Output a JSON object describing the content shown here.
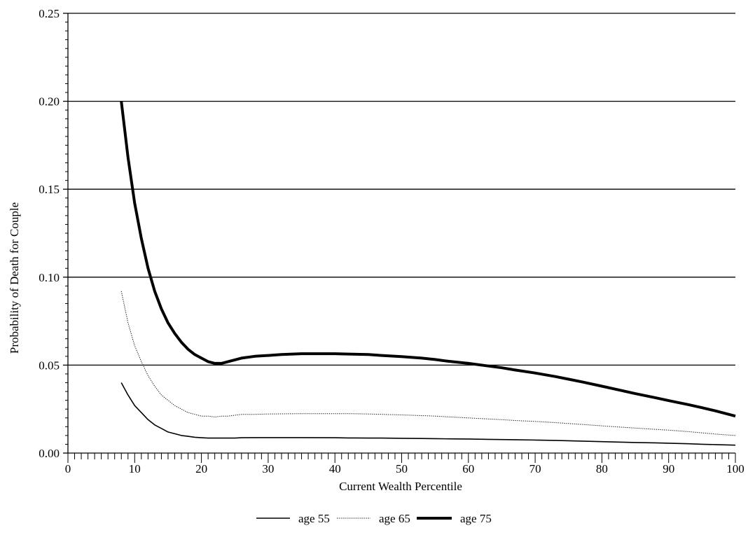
{
  "chart_data": {
    "type": "line",
    "title": "",
    "xlabel": "Current Wealth Percentile",
    "ylabel": "Probability of Death for Couple",
    "xlim": [
      0,
      100
    ],
    "ylim": [
      0,
      0.25
    ],
    "x_ticks": [
      "0",
      "10",
      "20",
      "30",
      "40",
      "50",
      "60",
      "70",
      "80",
      "90",
      "100"
    ],
    "y_ticks": [
      "0.00",
      "0.05",
      "0.10",
      "0.15",
      "0.20",
      "0.25"
    ],
    "grid": "horizontal major lines at 0.05 intervals",
    "legend_position": "bottom-center",
    "x": [
      8,
      9,
      10,
      11,
      12,
      13,
      14,
      15,
      16,
      17,
      18,
      19,
      20,
      21,
      22,
      23,
      24,
      25,
      26,
      28,
      30,
      32,
      35,
      40,
      42,
      45,
      47,
      50,
      53,
      55,
      57,
      60,
      63,
      65,
      67,
      70,
      73,
      75,
      77,
      80,
      83,
      85,
      88,
      90,
      93,
      95,
      97,
      100
    ],
    "series": [
      {
        "name": "age 55",
        "style": "thin-solid",
        "values": [
          0.04,
          0.033,
          0.027,
          0.023,
          0.019,
          0.016,
          0.014,
          0.012,
          0.011,
          0.01,
          0.0095,
          0.009,
          0.0087,
          0.0085,
          0.0085,
          0.0085,
          0.0085,
          0.0085,
          0.0087,
          0.0088,
          0.0088,
          0.0088,
          0.0088,
          0.0087,
          0.0086,
          0.0085,
          0.0085,
          0.0084,
          0.0083,
          0.0082,
          0.0081,
          0.008,
          0.0078,
          0.0077,
          0.0076,
          0.0074,
          0.0072,
          0.007,
          0.0068,
          0.0065,
          0.0062,
          0.006,
          0.0058,
          0.0056,
          0.0053,
          0.005,
          0.0048,
          0.0045
        ]
      },
      {
        "name": "age 65",
        "style": "dotted",
        "values": [
          0.092,
          0.074,
          0.061,
          0.052,
          0.044,
          0.038,
          0.033,
          0.03,
          0.027,
          0.025,
          0.023,
          0.022,
          0.021,
          0.021,
          0.0205,
          0.021,
          0.021,
          0.0215,
          0.022,
          0.022,
          0.0222,
          0.0223,
          0.0224,
          0.0224,
          0.0224,
          0.0222,
          0.022,
          0.0217,
          0.0213,
          0.021,
          0.0206,
          0.02,
          0.0194,
          0.019,
          0.0185,
          0.018,
          0.0173,
          0.0168,
          0.0163,
          0.0155,
          0.0147,
          0.0142,
          0.0135,
          0.013,
          0.0122,
          0.0115,
          0.0108,
          0.01
        ]
      },
      {
        "name": "age 75",
        "style": "thick-solid",
        "values": [
          0.2,
          0.168,
          0.142,
          0.122,
          0.105,
          0.092,
          0.082,
          0.074,
          0.068,
          0.063,
          0.059,
          0.056,
          0.054,
          0.052,
          0.051,
          0.051,
          0.052,
          0.053,
          0.054,
          0.055,
          0.0555,
          0.056,
          0.0565,
          0.0565,
          0.0563,
          0.056,
          0.0555,
          0.0548,
          0.054,
          0.0532,
          0.0522,
          0.051,
          0.0495,
          0.0485,
          0.0472,
          0.0455,
          0.0435,
          0.042,
          0.0405,
          0.038,
          0.0355,
          0.0338,
          0.0315,
          0.0298,
          0.0275,
          0.0258,
          0.024,
          0.021
        ]
      }
    ]
  }
}
